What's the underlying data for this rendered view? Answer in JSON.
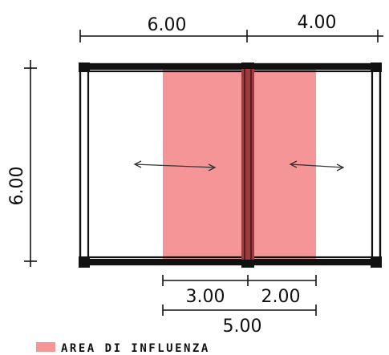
{
  "dimensions": {
    "top_left_span": "6.00",
    "top_right_span": "4.00",
    "left_height": "6.00",
    "influence_left": "3.00",
    "influence_right": "2.00",
    "influence_total": "5.00"
  },
  "legend": {
    "label": "AREA DI INFLUENZA",
    "swatch_color": "#f59597"
  },
  "colors": {
    "influence_fill": "#f59597",
    "beam": "#9b3b3b",
    "frame": "#111111"
  }
}
